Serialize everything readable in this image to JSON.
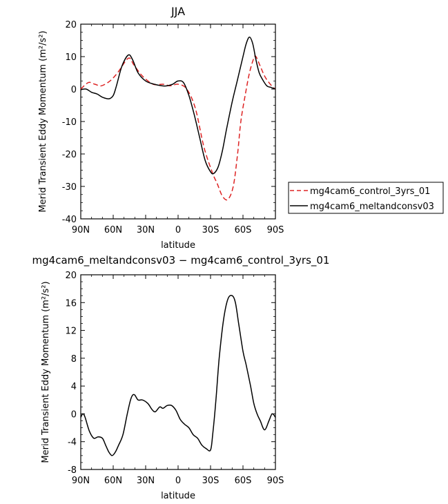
{
  "chart_data": [
    {
      "type": "line",
      "title": "JJA",
      "xlabel": "latitude",
      "ylabel": "Merid Transient Eddy Momentum (m²/s²)",
      "xlim": [
        90,
        -90
      ],
      "ylim": [
        -40,
        20
      ],
      "xticks": [
        90,
        60,
        30,
        0,
        -30,
        -60,
        -90
      ],
      "xtick_labels": [
        "90N",
        "60N",
        "30N",
        "0",
        "30S",
        "60S",
        "90S"
      ],
      "yticks": [
        -40,
        -30,
        -20,
        -10,
        0,
        10,
        20
      ],
      "ytick_labels": [
        "-40",
        "-30",
        "-20",
        "-10",
        "0",
        "10",
        "20"
      ],
      "legend": "right",
      "series": [
        {
          "name": "mg4cam6_control_3yrs_01",
          "color": "#dd2222",
          "dash": "dashed",
          "x": [
            90,
            83,
            77,
            71,
            63,
            56,
            46,
            41,
            33,
            23,
            14,
            7,
            0,
            -8,
            -16,
            -24,
            -32,
            -36,
            -41,
            -46,
            -51,
            -55,
            -58,
            -62,
            -66,
            -70,
            -72,
            -76,
            -80,
            -84,
            -88,
            -90
          ],
          "y": [
            0,
            2,
            1.5,
            1,
            2.5,
            5,
            9.5,
            7.5,
            4,
            1.5,
            1.5,
            1,
            1.5,
            0,
            -6,
            -18,
            -26,
            -29,
            -33,
            -34,
            -30,
            -20,
            -10,
            -2,
            5,
            9.5,
            10,
            7,
            4,
            2,
            0.5,
            0
          ]
        },
        {
          "name": "mg4cam6_meltandconsv03",
          "color": "#000000",
          "dash": "solid",
          "x": [
            90,
            85,
            80,
            75,
            70,
            64,
            60,
            57,
            52,
            46,
            42,
            37,
            30,
            22,
            15,
            10,
            5,
            0,
            -5,
            -10,
            -15,
            -20,
            -25,
            -30,
            -33,
            -37,
            -41,
            -45,
            -50,
            -55,
            -60,
            -63,
            -66,
            -69,
            -72,
            -75,
            -78,
            -82,
            -86,
            -90
          ],
          "y": [
            -0.2,
            0,
            -1,
            -1.5,
            -2.5,
            -3,
            -2,
            1,
            7,
            10.5,
            9,
            5,
            2.5,
            1.5,
            1,
            1,
            1.5,
            2.5,
            2,
            -2,
            -8,
            -15,
            -22,
            -25.5,
            -26,
            -24,
            -19,
            -12,
            -4,
            3,
            10,
            14,
            16,
            14,
            9,
            5,
            3,
            1,
            0.5,
            0
          ]
        }
      ]
    },
    {
      "type": "line",
      "title": "mg4cam6_meltandconsv03 − mg4cam6_control_3yrs_01",
      "xlabel": "latitude",
      "ylabel": "Merid Transient Eddy Momentum (m²/s²)",
      "xlim": [
        90,
        -90
      ],
      "ylim": [
        -8,
        20
      ],
      "xticks": [
        90,
        60,
        30,
        0,
        -30,
        -60,
        -90
      ],
      "xtick_labels": [
        "90N",
        "60N",
        "30N",
        "0",
        "30S",
        "60S",
        "90S"
      ],
      "yticks": [
        -8,
        -4,
        0,
        4,
        8,
        12,
        16,
        20
      ],
      "ytick_labels": [
        "-8",
        "-4",
        "0",
        "4",
        "8",
        "12",
        "16",
        "20"
      ],
      "series": [
        {
          "name": "",
          "color": "#000000",
          "dash": "solid",
          "x": [
            90,
            88,
            86,
            82,
            78,
            74,
            70,
            67,
            64,
            61,
            58,
            55,
            51,
            47,
            44,
            42,
            40,
            37,
            33,
            28,
            24,
            21,
            17,
            14,
            10,
            6,
            2,
            -2,
            -6,
            -10,
            -14,
            -18,
            -22,
            -26,
            -30,
            -32,
            -35,
            -38,
            -42,
            -46,
            -50,
            -53,
            -56,
            -60,
            -63,
            -67,
            -70,
            -73,
            -76,
            -80,
            -84,
            -87,
            -90
          ],
          "y": [
            -0.5,
            0,
            -0.5,
            -2.5,
            -3.5,
            -3.3,
            -3.5,
            -4.5,
            -5.5,
            -6,
            -5.5,
            -4.5,
            -3,
            0,
            2,
            2.7,
            2.7,
            2,
            2,
            1.5,
            0.6,
            0.3,
            1,
            0.8,
            1.2,
            1.2,
            0.5,
            -0.8,
            -1.5,
            -2,
            -3,
            -3.5,
            -4.5,
            -5,
            -5.2,
            -3,
            2,
            8,
            13.5,
            16.5,
            17,
            16,
            13,
            9,
            7,
            4,
            1.5,
            0,
            -1,
            -2.3,
            -1,
            0,
            -0.5
          ]
        }
      ]
    }
  ]
}
